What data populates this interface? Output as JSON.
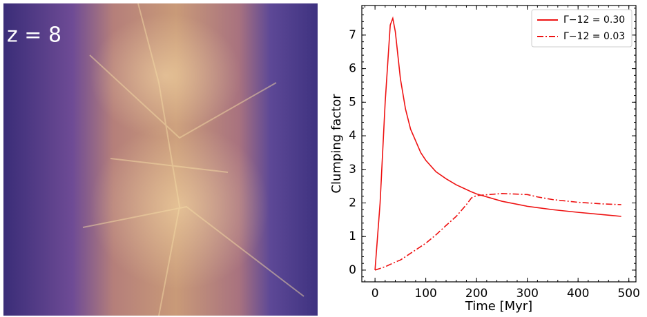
{
  "image": {
    "label": "z = 8"
  },
  "chart_data": {
    "type": "line",
    "xlabel": "Time [Myr]",
    "ylabel": "Clumping factor",
    "x": [
      0,
      10,
      20,
      30,
      35,
      40,
      50,
      60,
      70,
      80,
      90,
      100,
      120,
      140,
      160,
      180,
      190,
      200,
      250,
      300,
      320,
      350,
      400,
      450,
      485
    ],
    "series": [
      {
        "name": "Γ−12 = 0.30",
        "color": "#ee1111",
        "linestyle": "solid",
        "values": [
          0,
          2,
          5,
          7.3,
          7.5,
          7.1,
          5.7,
          4.8,
          4.2,
          3.85,
          3.5,
          3.27,
          2.93,
          2.72,
          2.54,
          2.4,
          2.33,
          2.27,
          2.05,
          1.9,
          1.86,
          1.8,
          1.72,
          1.65,
          1.6
        ]
      },
      {
        "name": "Γ−12 = 0.03",
        "color": "#ee1111",
        "linestyle": "dashdot",
        "values": [
          0,
          0.05,
          0.1,
          0.17,
          0.2,
          0.24,
          0.3,
          0.4,
          0.5,
          0.6,
          0.7,
          0.8,
          1.05,
          1.33,
          1.6,
          1.95,
          2.15,
          2.22,
          2.28,
          2.25,
          2.18,
          2.1,
          2.02,
          1.97,
          1.95
        ]
      }
    ],
    "xlim": [
      -26,
      514
    ],
    "ylim": [
      -0.35,
      7.88
    ],
    "xticks": [
      0,
      100,
      200,
      300,
      400,
      500
    ],
    "yticks": [
      0,
      1,
      2,
      3,
      4,
      5,
      6,
      7
    ],
    "legend": "upper right",
    "grid": false
  }
}
